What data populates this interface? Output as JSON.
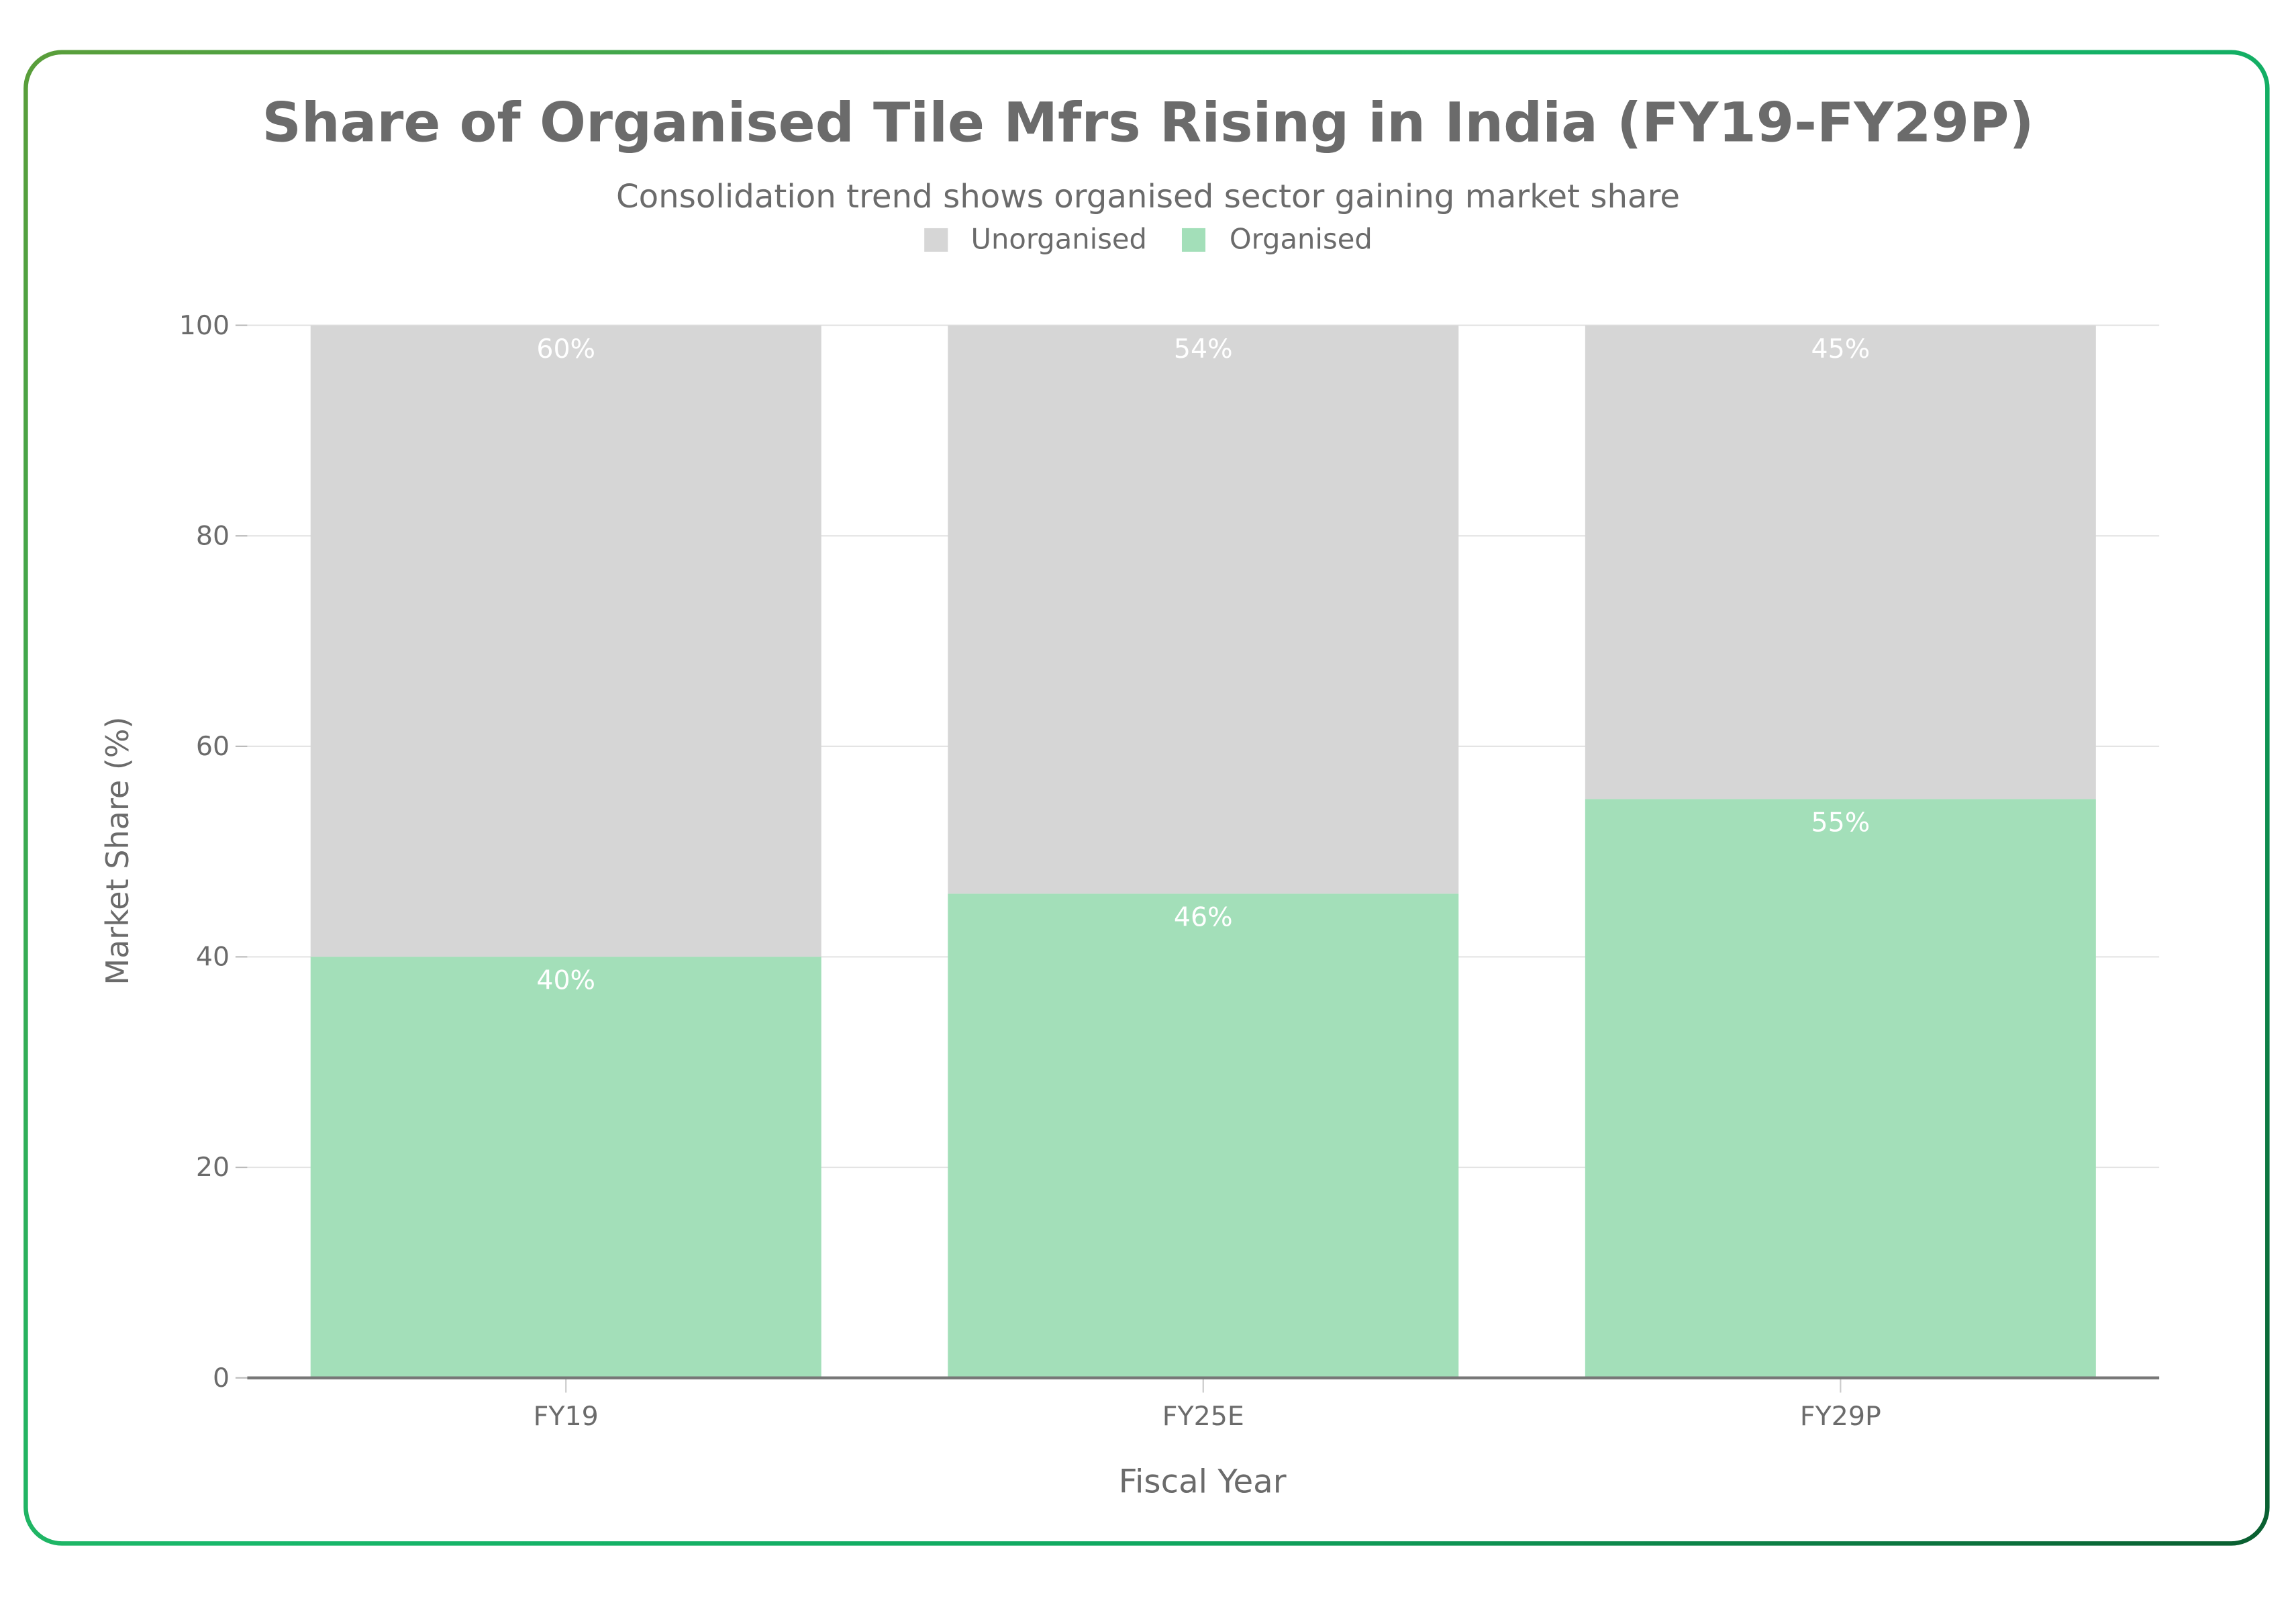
{
  "chart_data": {
    "type": "bar",
    "stacked": true,
    "title": "Share of Organised Tile Mfrs Rising in India (FY19-FY29P)",
    "subtitle": "Consolidation trend shows organised sector gaining market share",
    "xlabel": "Fiscal Year",
    "ylabel": "Market Share (%)",
    "categories": [
      "FY19",
      "FY25E",
      "FY29P"
    ],
    "ylim": [
      0,
      100
    ],
    "yticks": [
      0,
      20,
      40,
      60,
      80,
      100
    ],
    "grid": true,
    "legend_position": "top-center",
    "series": [
      {
        "name": "Organised",
        "values": [
          40,
          46,
          55
        ],
        "labels": [
          "40%",
          "46%",
          "55%"
        ],
        "color": "#a3dfb9"
      },
      {
        "name": "Unorganised",
        "values": [
          60,
          54,
          45
        ],
        "labels": [
          "60%",
          "54%",
          "45%"
        ],
        "color": "#d6d6d6"
      }
    ],
    "legend": [
      "Unorganised",
      "Organised"
    ]
  },
  "colors": {
    "border_gradient": [
      "#5a9e3a",
      "#18b86a",
      "#0a5e30"
    ],
    "text": "#6b6b6b"
  }
}
